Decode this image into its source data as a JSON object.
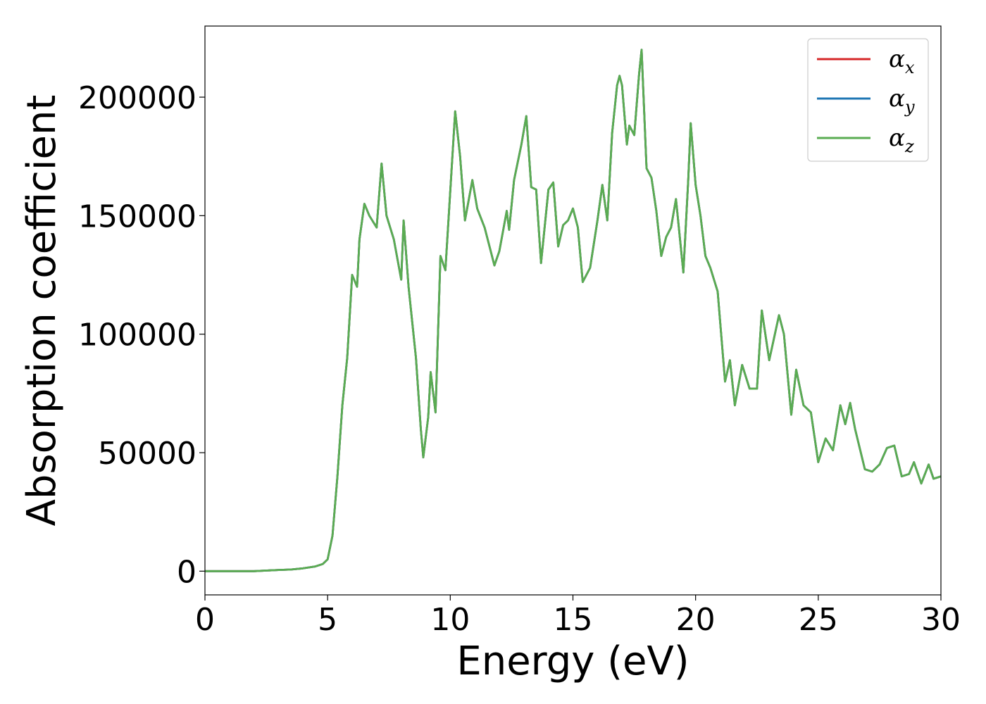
{
  "chart_data": {
    "type": "line",
    "xlabel": "Energy (eV)",
    "ylabel": "Absorption coefficient",
    "xlim": [
      0,
      30
    ],
    "ylim": [
      -10000,
      230000
    ],
    "xticks": [
      0,
      5,
      10,
      15,
      20,
      25,
      30
    ],
    "xtick_labels": [
      "0",
      "5",
      "10",
      "15",
      "20",
      "25",
      "30"
    ],
    "yticks": [
      0,
      50000,
      100000,
      150000,
      200000
    ],
    "ytick_labels": [
      "0",
      "50000",
      "100000",
      "150000",
      "200000"
    ],
    "grid": false,
    "legend_position": "top-right",
    "series": [
      {
        "name": "αx",
        "base": "α",
        "sub": "x",
        "color": "#d62728",
        "x": [
          0,
          1,
          2,
          3,
          3.5,
          4,
          4.5,
          4.8,
          5,
          5.2,
          5.4,
          5.6,
          5.8,
          6,
          6.2,
          6.3,
          6.5,
          6.7,
          7,
          7.2,
          7.4,
          7.7,
          8,
          8.1,
          8.3,
          8.6,
          8.8,
          8.9,
          9.1,
          9.2,
          9.4,
          9.6,
          9.8,
          10.2,
          10.4,
          10.6,
          10.9,
          11.1,
          11.4,
          11.8,
          12,
          12.3,
          12.4,
          12.6,
          12.9,
          13.1,
          13.3,
          13.5,
          13.7,
          14,
          14.2,
          14.4,
          14.6,
          14.8,
          15,
          15.2,
          15.4,
          15.7,
          16,
          16.2,
          16.4,
          16.6,
          16.8,
          16.9,
          17,
          17.2,
          17.3,
          17.5,
          17.7,
          17.8,
          18,
          18.2,
          18.4,
          18.6,
          18.8,
          19,
          19.2,
          19.5,
          19.7,
          19.8,
          20,
          20.2,
          20.4,
          20.6,
          20.9,
          21.2,
          21.4,
          21.6,
          21.9,
          22.2,
          22.5,
          22.7,
          23,
          23.4,
          23.6,
          23.9,
          24.1,
          24.4,
          24.7,
          25,
          25.3,
          25.6,
          25.9,
          26.1,
          26.3,
          26.5,
          26.9,
          27.2,
          27.5,
          27.8,
          28.1,
          28.4,
          28.7,
          28.9,
          29.2,
          29.5,
          29.7,
          30
        ],
        "y": [
          0,
          0,
          0,
          500,
          700,
          1200,
          2000,
          3000,
          5000,
          15000,
          40000,
          70000,
          90000,
          125000,
          120000,
          140000,
          155000,
          150000,
          145000,
          172000,
          150000,
          140000,
          123000,
          148000,
          120000,
          90000,
          60000,
          48000,
          65000,
          84000,
          67000,
          133000,
          127000,
          194000,
          175000,
          148000,
          165000,
          153000,
          145000,
          129000,
          135000,
          152000,
          144000,
          165000,
          180000,
          192000,
          162000,
          161000,
          130000,
          161000,
          164000,
          137000,
          146000,
          148000,
          153000,
          145000,
          122000,
          128000,
          148000,
          163000,
          148000,
          185000,
          205000,
          209000,
          205000,
          180000,
          188000,
          184000,
          210000,
          220000,
          170000,
          166000,
          152000,
          133000,
          141000,
          145000,
          157000,
          126000,
          165000,
          189000,
          163000,
          150000,
          133000,
          128000,
          118000,
          80000,
          89000,
          70000,
          87000,
          77000,
          77000,
          110000,
          89000,
          108000,
          100000,
          66000,
          85000,
          70000,
          67000,
          46000,
          56000,
          51000,
          70000,
          62000,
          71000,
          60000,
          43000,
          42000,
          45000,
          52000,
          53000,
          40000,
          41000,
          46000,
          37000,
          45000,
          39000,
          40000
        ]
      },
      {
        "name": "αy",
        "base": "α",
        "sub": "y",
        "color": "#1f77b4",
        "x": [
          0,
          1,
          2,
          3,
          3.5,
          4,
          4.5,
          4.8,
          5,
          5.2,
          5.4,
          5.6,
          5.8,
          6,
          6.2,
          6.3,
          6.5,
          6.7,
          7,
          7.2,
          7.4,
          7.7,
          8,
          8.1,
          8.3,
          8.6,
          8.8,
          8.9,
          9.1,
          9.2,
          9.4,
          9.6,
          9.8,
          10.2,
          10.4,
          10.6,
          10.9,
          11.1,
          11.4,
          11.8,
          12,
          12.3,
          12.4,
          12.6,
          12.9,
          13.1,
          13.3,
          13.5,
          13.7,
          14,
          14.2,
          14.4,
          14.6,
          14.8,
          15,
          15.2,
          15.4,
          15.7,
          16,
          16.2,
          16.4,
          16.6,
          16.8,
          16.9,
          17,
          17.2,
          17.3,
          17.5,
          17.7,
          17.8,
          18,
          18.2,
          18.4,
          18.6,
          18.8,
          19,
          19.2,
          19.5,
          19.7,
          19.8,
          20,
          20.2,
          20.4,
          20.6,
          20.9,
          21.2,
          21.4,
          21.6,
          21.9,
          22.2,
          22.5,
          22.7,
          23,
          23.4,
          23.6,
          23.9,
          24.1,
          24.4,
          24.7,
          25,
          25.3,
          25.6,
          25.9,
          26.1,
          26.3,
          26.5,
          26.9,
          27.2,
          27.5,
          27.8,
          28.1,
          28.4,
          28.7,
          28.9,
          29.2,
          29.5,
          29.7,
          30
        ],
        "y": [
          0,
          0,
          0,
          500,
          700,
          1200,
          2000,
          3000,
          5000,
          15000,
          40000,
          70000,
          90000,
          125000,
          120000,
          140000,
          155000,
          150000,
          145000,
          172000,
          150000,
          140000,
          123000,
          148000,
          120000,
          90000,
          60000,
          48000,
          65000,
          84000,
          67000,
          133000,
          127000,
          194000,
          175000,
          148000,
          165000,
          153000,
          145000,
          129000,
          135000,
          152000,
          144000,
          165000,
          180000,
          192000,
          162000,
          161000,
          130000,
          161000,
          164000,
          137000,
          146000,
          148000,
          153000,
          145000,
          122000,
          128000,
          148000,
          163000,
          148000,
          185000,
          205000,
          209000,
          205000,
          180000,
          188000,
          184000,
          210000,
          220000,
          170000,
          166000,
          152000,
          133000,
          141000,
          145000,
          157000,
          126000,
          165000,
          189000,
          163000,
          150000,
          133000,
          128000,
          118000,
          80000,
          89000,
          70000,
          87000,
          77000,
          77000,
          110000,
          89000,
          108000,
          100000,
          66000,
          85000,
          70000,
          67000,
          46000,
          56000,
          51000,
          70000,
          62000,
          71000,
          60000,
          43000,
          42000,
          45000,
          52000,
          53000,
          40000,
          41000,
          46000,
          37000,
          45000,
          39000,
          40000
        ]
      },
      {
        "name": "αz",
        "base": "α",
        "sub": "z",
        "color": "#5aac52",
        "x": [
          0,
          1,
          2,
          3,
          3.5,
          4,
          4.5,
          4.8,
          5,
          5.2,
          5.4,
          5.6,
          5.8,
          6,
          6.2,
          6.3,
          6.5,
          6.7,
          7,
          7.2,
          7.4,
          7.7,
          8,
          8.1,
          8.3,
          8.6,
          8.8,
          8.9,
          9.1,
          9.2,
          9.4,
          9.6,
          9.8,
          10.2,
          10.4,
          10.6,
          10.9,
          11.1,
          11.4,
          11.8,
          12,
          12.3,
          12.4,
          12.6,
          12.9,
          13.1,
          13.3,
          13.5,
          13.7,
          14,
          14.2,
          14.4,
          14.6,
          14.8,
          15,
          15.2,
          15.4,
          15.7,
          16,
          16.2,
          16.4,
          16.6,
          16.8,
          16.9,
          17,
          17.2,
          17.3,
          17.5,
          17.7,
          17.8,
          18,
          18.2,
          18.4,
          18.6,
          18.8,
          19,
          19.2,
          19.5,
          19.7,
          19.8,
          20,
          20.2,
          20.4,
          20.6,
          20.9,
          21.2,
          21.4,
          21.6,
          21.9,
          22.2,
          22.5,
          22.7,
          23,
          23.4,
          23.6,
          23.9,
          24.1,
          24.4,
          24.7,
          25,
          25.3,
          25.6,
          25.9,
          26.1,
          26.3,
          26.5,
          26.9,
          27.2,
          27.5,
          27.8,
          28.1,
          28.4,
          28.7,
          28.9,
          29.2,
          29.5,
          29.7,
          30
        ],
        "y": [
          0,
          0,
          0,
          500,
          700,
          1200,
          2000,
          3000,
          5000,
          15000,
          40000,
          70000,
          90000,
          125000,
          120000,
          140000,
          155000,
          150000,
          145000,
          172000,
          150000,
          140000,
          123000,
          148000,
          120000,
          90000,
          60000,
          48000,
          65000,
          84000,
          67000,
          133000,
          127000,
          194000,
          175000,
          148000,
          165000,
          153000,
          145000,
          129000,
          135000,
          152000,
          144000,
          165000,
          180000,
          192000,
          162000,
          161000,
          130000,
          161000,
          164000,
          137000,
          146000,
          148000,
          153000,
          145000,
          122000,
          128000,
          148000,
          163000,
          148000,
          185000,
          205000,
          209000,
          205000,
          180000,
          188000,
          184000,
          210000,
          220000,
          170000,
          166000,
          152000,
          133000,
          141000,
          145000,
          157000,
          126000,
          165000,
          189000,
          163000,
          150000,
          133000,
          128000,
          118000,
          80000,
          89000,
          70000,
          87000,
          77000,
          77000,
          110000,
          89000,
          108000,
          100000,
          66000,
          85000,
          70000,
          67000,
          46000,
          56000,
          51000,
          70000,
          62000,
          71000,
          60000,
          43000,
          42000,
          45000,
          52000,
          53000,
          40000,
          41000,
          46000,
          37000,
          45000,
          39000,
          40000
        ]
      }
    ]
  }
}
